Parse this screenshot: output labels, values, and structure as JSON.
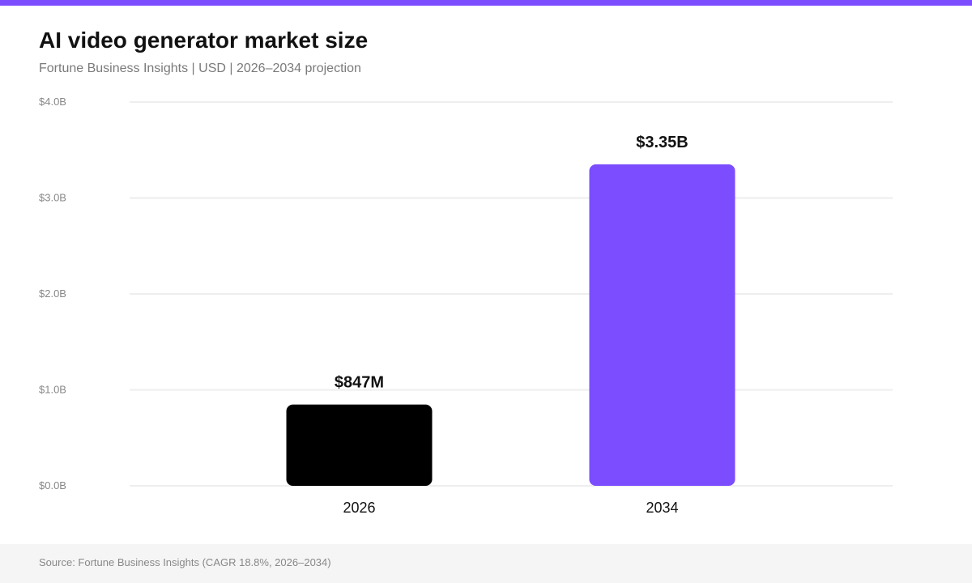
{
  "header": {
    "title": "AI video generator market size",
    "subtitle": "Fortune Business Insights | USD | 2026–2034 projection"
  },
  "colors": {
    "accent": "#7c4dff",
    "bar_2026": "#000000",
    "bar_2034": "#7c4dff",
    "gridline": "#eeeeee",
    "tick_label": "#888888"
  },
  "chart_data": {
    "type": "bar",
    "categories": [
      "2026",
      "2034"
    ],
    "values": [
      0.847,
      3.35
    ],
    "data_labels": [
      "$847M",
      "$3.35B"
    ],
    "ylim": [
      0,
      4
    ],
    "yticks": [
      0,
      1,
      2,
      3,
      4
    ],
    "ytick_labels": [
      "$0.0B",
      "$1.0B",
      "$2.0B",
      "$3.0B",
      "$4.0B"
    ],
    "grid": true,
    "legend": "none",
    "xlabel": "",
    "ylabel": ""
  },
  "footer": {
    "source": "Source: Fortune Business Insights (CAGR 18.8%, 2026–2034)"
  }
}
